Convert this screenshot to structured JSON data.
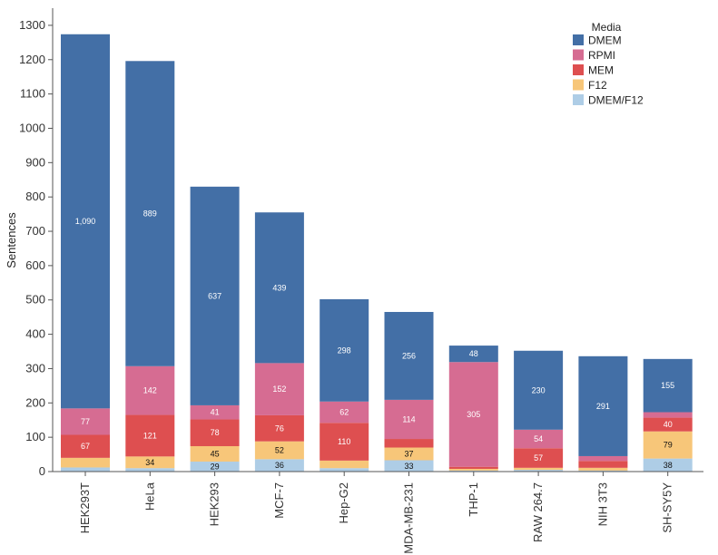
{
  "chart_data": {
    "type": "bar",
    "stacked": true,
    "ylabel": "Sentences",
    "xlabel": "",
    "ylim": [
      0,
      1350
    ],
    "yticks": [
      0,
      100,
      200,
      300,
      400,
      500,
      600,
      700,
      800,
      900,
      1000,
      1100,
      1200,
      1300
    ],
    "grid": false,
    "legend": {
      "title": "Media",
      "position": "top-right"
    },
    "categories": [
      "HEK293T",
      "HeLa",
      "HEK293",
      "MCF-7",
      "Hep-G2",
      "MDA-MB-231",
      "THP-1",
      "RAW 264.7",
      "NIH 3T3",
      "SH-SY5Y"
    ],
    "series": [
      {
        "name": "DMEM/F12",
        "color": "#aecde6",
        "values": [
          12,
          10,
          29,
          36,
          10,
          33,
          3,
          5,
          3,
          38
        ],
        "labels": [
          "",
          "",
          "29",
          "36",
          "",
          "33",
          "",
          "",
          "",
          "38"
        ]
      },
      {
        "name": "F12",
        "color": "#f7c679",
        "values": [
          28,
          34,
          45,
          52,
          22,
          37,
          5,
          6,
          8,
          79
        ],
        "labels": [
          "",
          "34",
          "45",
          "52",
          "",
          "37",
          "",
          "",
          "",
          "79"
        ]
      },
      {
        "name": "MEM",
        "color": "#de4f50",
        "values": [
          67,
          121,
          78,
          76,
          110,
          25,
          6,
          57,
          20,
          40
        ],
        "labels": [
          "67",
          "121",
          "78",
          "76",
          "110",
          "",
          "",
          "57",
          "",
          "40"
        ]
      },
      {
        "name": "RPMI",
        "color": "#d66c92",
        "values": [
          77,
          142,
          41,
          152,
          62,
          114,
          305,
          54,
          14,
          16
        ],
        "labels": [
          "77",
          "142",
          "41",
          "152",
          "62",
          "114",
          "305",
          "54",
          "",
          ""
        ]
      },
      {
        "name": "DMEM",
        "color": "#436fa6",
        "values": [
          1090,
          889,
          637,
          439,
          298,
          256,
          48,
          230,
          291,
          155
        ],
        "labels": [
          "1,090",
          "889",
          "637",
          "439",
          "298",
          "256",
          "48",
          "230",
          "291",
          "155"
        ]
      }
    ],
    "legend_order": [
      "DMEM",
      "RPMI",
      "MEM",
      "F12",
      "DMEM/F12"
    ]
  }
}
